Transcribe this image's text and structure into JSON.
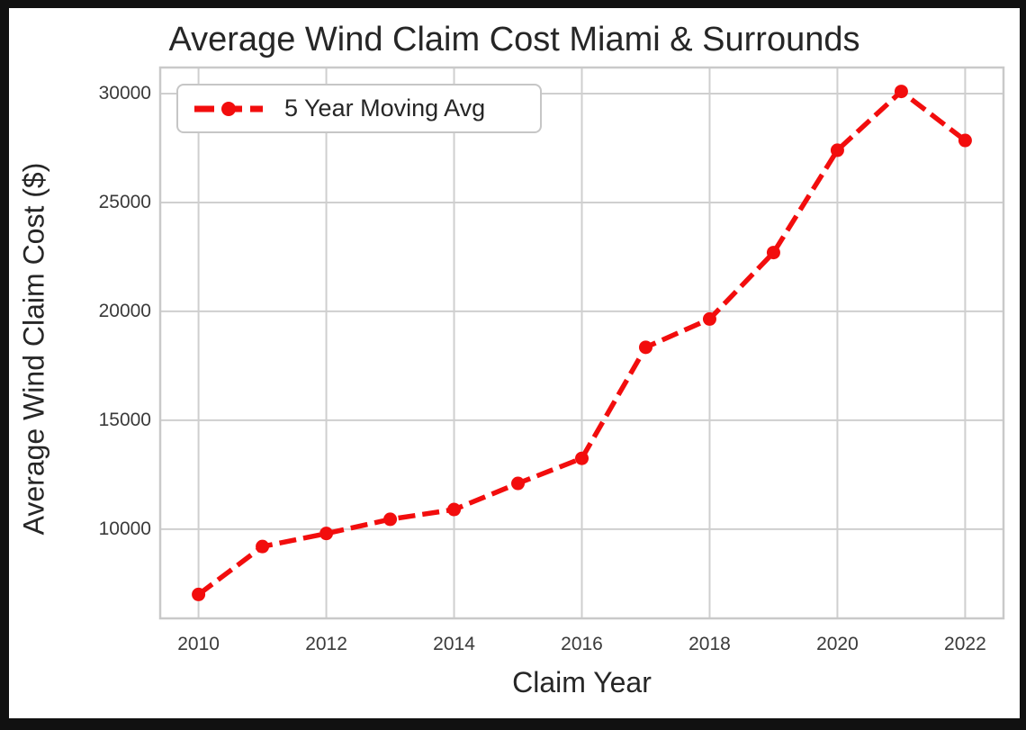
{
  "colors": {
    "series_red": "#f20d0d",
    "grid": "#cfcfcf",
    "frame_border": "#c9c9c9",
    "text": "#262626",
    "figure_background": "#ffffff",
    "outer_border": "#111111"
  },
  "chart_data": {
    "type": "line",
    "title": "Average Wind Claim Cost Miami & Surrounds",
    "xlabel": "Claim Year",
    "ylabel": "Average Wind Claim Cost ($)",
    "grid": true,
    "legend_position": "upper left",
    "line_style": "dashed",
    "marker": "circle",
    "x_ticks": [
      2010,
      2012,
      2014,
      2016,
      2018,
      2020,
      2022
    ],
    "y_ticks": [
      10000,
      15000,
      20000,
      25000,
      30000
    ],
    "xlim": [
      2009.4,
      2022.6
    ],
    "ylim": [
      5900,
      31200
    ],
    "series": [
      {
        "name": "5 Year Moving Avg",
        "color": "#f20d0d",
        "x": [
          2010,
          2011,
          2012,
          2013,
          2014,
          2015,
          2016,
          2017,
          2018,
          2019,
          2020,
          2021,
          2022
        ],
        "values": [
          7000,
          9200,
          9800,
          10450,
          10900,
          12100,
          13250,
          18350,
          19650,
          22700,
          27400,
          30100,
          27850
        ]
      }
    ]
  }
}
